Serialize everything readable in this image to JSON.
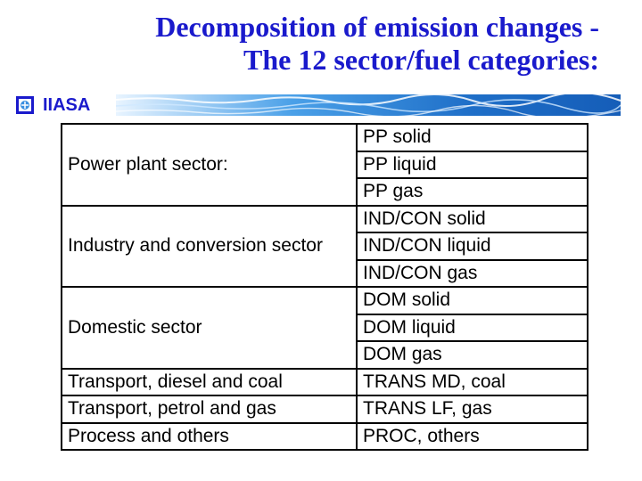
{
  "slide": {
    "title_line1": "Decomposition of emission changes -",
    "title_line2": "The 12 sector/fuel categories:",
    "logo_text": "IIASA"
  },
  "colors": {
    "title": "#1a1acc",
    "banner": "#2a7fd0"
  },
  "table": {
    "groups": [
      {
        "sector": "Power plant sector:",
        "categories": [
          "PP solid",
          "PP liquid",
          "PP gas"
        ]
      },
      {
        "sector": "Industry and conversion sector",
        "categories": [
          "IND/CON solid",
          "IND/CON liquid",
          "IND/CON gas"
        ]
      },
      {
        "sector": "Domestic sector",
        "categories": [
          "DOM solid",
          "DOM liquid",
          "DOM gas"
        ]
      },
      {
        "sector": "Transport, diesel and coal",
        "categories": [
          "TRANS MD, coal"
        ]
      },
      {
        "sector": "Transport, petrol and gas",
        "categories": [
          "TRANS LF, gas"
        ]
      },
      {
        "sector": "Process and others",
        "categories": [
          "PROC, others"
        ]
      }
    ]
  }
}
